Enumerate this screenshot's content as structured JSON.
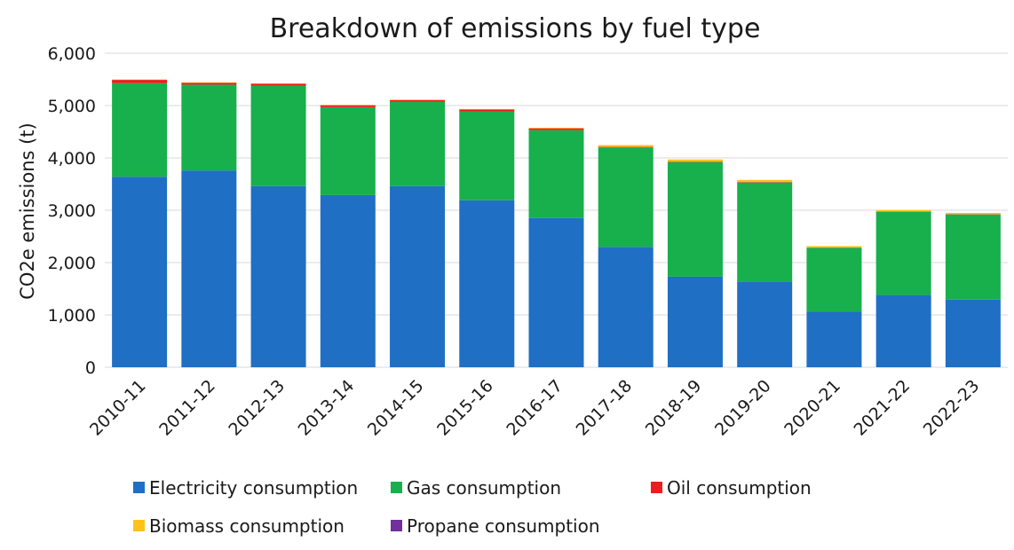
{
  "chart_data": {
    "type": "bar",
    "stacked": true,
    "title": "Breakdown of emissions by fuel type",
    "ylabel": "CO2e emissions (t)",
    "xlabel": "",
    "ylim": [
      0,
      6000
    ],
    "yticks": [
      0,
      1000,
      2000,
      3000,
      4000,
      5000,
      6000
    ],
    "ytick_labels": [
      "0",
      "1,000",
      "2,000",
      "3,000",
      "4,000",
      "5,000",
      "6,000"
    ],
    "grid": true,
    "legend_position": "bottom",
    "categories": [
      "2010-11",
      "2011-12",
      "2012-13",
      "2013-14",
      "2014-15",
      "2015-16",
      "2016-17",
      "2017-18",
      "2018-19",
      "2019-20",
      "2020-21",
      "2021-22",
      "2022-23"
    ],
    "series": [
      {
        "name": "Electricity consumption",
        "color": "#1f6fc5",
        "values": [
          3640,
          3760,
          3460,
          3290,
          3460,
          3190,
          2850,
          2300,
          1730,
          1640,
          1060,
          1380,
          1290
        ]
      },
      {
        "name": "Gas consumption",
        "color": "#17b04c",
        "values": [
          1790,
          1640,
          1920,
          1680,
          1610,
          1700,
          1680,
          1900,
          2190,
          1890,
          1220,
          1590,
          1630
        ]
      },
      {
        "name": "Oil consumption",
        "color": "#ee1c1c",
        "values": [
          60,
          35,
          35,
          35,
          35,
          35,
          35,
          10,
          10,
          10,
          5,
          5,
          5
        ]
      },
      {
        "name": "Biomass consumption",
        "color": "#ffc21a",
        "values": [
          10,
          10,
          10,
          10,
          10,
          10,
          10,
          35,
          40,
          40,
          30,
          30,
          25
        ]
      },
      {
        "name": "Propane consumption",
        "color": "#7030a0",
        "values": [
          0,
          0,
          0,
          0,
          0,
          0,
          0,
          0,
          0,
          0,
          0,
          0,
          0
        ]
      }
    ]
  }
}
